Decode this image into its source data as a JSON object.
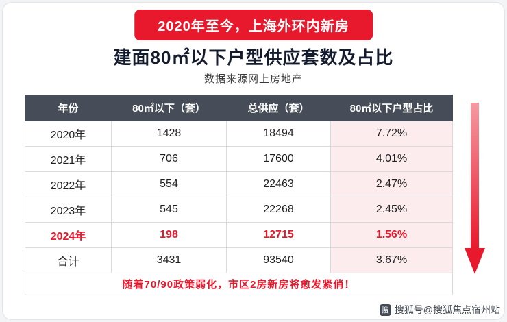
{
  "banner_label": "2020年至今，上海外环内新房",
  "watermark": "搜狐号@搜狐焦点宿州站",
  "chart_data": {
    "type": "table",
    "title": "建面80㎡以下户型供应套数及占比",
    "subtitle": "数据来源网上房地产",
    "columns": [
      "年份",
      "80㎡以下（套）",
      "总供应（套）",
      "80㎡以下户型占比"
    ],
    "rows": [
      [
        "2020年",
        "1428",
        "18494",
        "7.72%"
      ],
      [
        "2021年",
        "706",
        "17600",
        "4.01%"
      ],
      [
        "2022年",
        "554",
        "22463",
        "2.47%"
      ],
      [
        "2023年",
        "545",
        "22268",
        "2.45%"
      ],
      [
        "2024年",
        "198",
        "12715",
        "1.56%"
      ],
      [
        "合计",
        "3431",
        "93540",
        "3.67%"
      ]
    ],
    "highlight_rows": [
      4
    ],
    "note": "随着70/90政策弱化，市区2房新房将愈发紧俏！",
    "accent_color": "#e8192d",
    "header_bg": "#464d58",
    "ratio_col_bg": "#fdecee"
  }
}
